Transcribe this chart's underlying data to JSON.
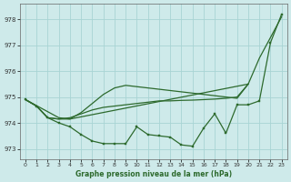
{
  "title": "Graphe pression niveau de la mer (hPa)",
  "background_color": "#ceeaea",
  "grid_color": "#a8d4d4",
  "line_color": "#2d6a2d",
  "xlim": [
    -0.5,
    23.5
  ],
  "ylim": [
    972.6,
    978.6
  ],
  "yticks": [
    973,
    974,
    975,
    976,
    977,
    978
  ],
  "xticks": [
    0,
    1,
    2,
    3,
    4,
    5,
    6,
    7,
    8,
    9,
    10,
    11,
    12,
    13,
    14,
    15,
    16,
    17,
    18,
    19,
    20,
    21,
    22,
    23
  ],
  "series": [
    {
      "x": [
        0,
        3,
        4,
        20,
        21,
        22,
        23
      ],
      "y": [
        974.9,
        974.2,
        974.15,
        975.5,
        976.5,
        977.3,
        978.1
      ],
      "marker": false
    },
    {
      "x": [
        0,
        1,
        2,
        3,
        4,
        5,
        6,
        7,
        8,
        9,
        10,
        11,
        12,
        13,
        14,
        15,
        16,
        17,
        18,
        19,
        20
      ],
      "y": [
        974.9,
        974.65,
        974.2,
        974.15,
        974.2,
        974.35,
        974.5,
        974.6,
        974.65,
        974.7,
        974.75,
        974.8,
        974.85,
        974.85,
        974.87,
        974.88,
        974.9,
        974.92,
        974.95,
        975.0,
        975.5
      ],
      "marker": false
    },
    {
      "x": [
        0,
        1,
        2,
        3,
        4,
        5,
        6,
        7,
        8,
        9,
        10,
        11,
        12,
        13,
        14,
        15,
        16,
        17,
        18,
        19,
        20
      ],
      "y": [
        974.9,
        974.65,
        974.2,
        974.15,
        974.15,
        974.4,
        974.75,
        975.1,
        975.35,
        975.45,
        975.4,
        975.35,
        975.3,
        975.25,
        975.2,
        975.15,
        975.1,
        975.05,
        975.0,
        974.95,
        975.5
      ],
      "marker": false
    },
    {
      "x": [
        0,
        1,
        2,
        3,
        4,
        5,
        6,
        7,
        8,
        9,
        10,
        11,
        12,
        13,
        14,
        15,
        16,
        17,
        18,
        19,
        20,
        21,
        22,
        23
      ],
      "y": [
        974.9,
        974.65,
        974.2,
        974.0,
        973.85,
        973.55,
        973.3,
        973.2,
        973.2,
        973.2,
        973.85,
        973.55,
        973.5,
        973.45,
        973.15,
        973.1,
        973.8,
        974.35,
        973.6,
        974.7,
        974.7,
        974.85,
        977.1,
        978.2
      ],
      "marker": true
    }
  ]
}
